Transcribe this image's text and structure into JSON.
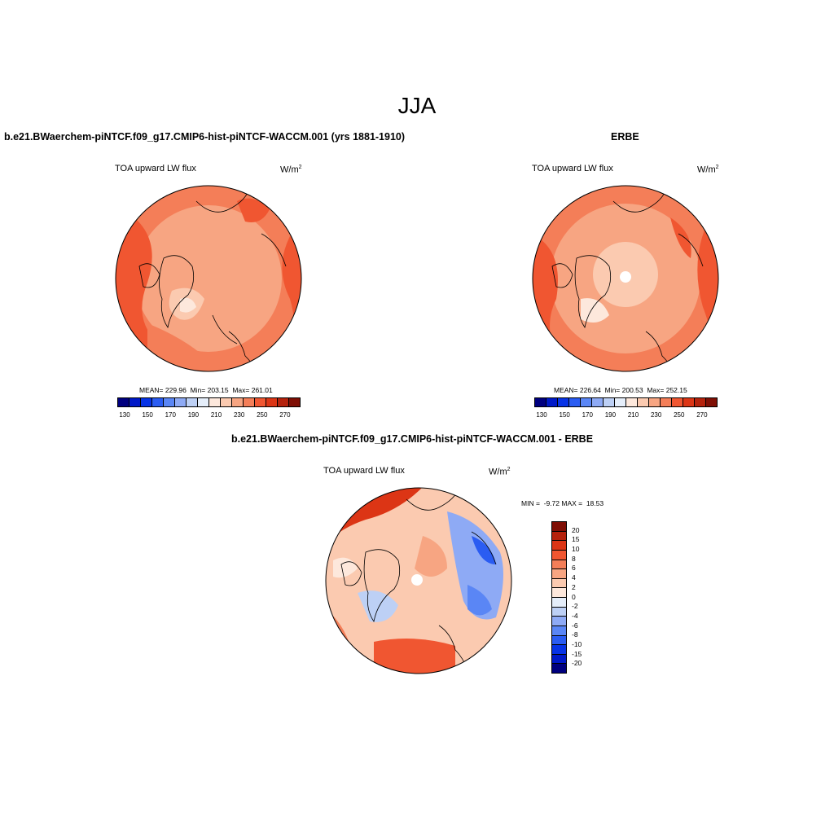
{
  "figure": {
    "title": "JJA"
  },
  "panels": [
    {
      "title": "b.e21.BWaerchem-piNTCF.f09_g17.CMIP6-hist-piNTCF-WACCM.001 (yrs 1881-1910)",
      "left_label": "TOA upward LW flux",
      "units": "W/m",
      "units_exp": "2",
      "stats": "MEAN= 229.96  Min= 203.15  Max= 261.01",
      "mean": 229.96,
      "min": 203.15,
      "max": 261.01
    },
    {
      "title": "ERBE",
      "left_label": "TOA upward LW flux",
      "units": "W/m",
      "units_exp": "2",
      "stats": "MEAN= 226.64  Min= 200.53  Max= 252.15",
      "mean": 226.64,
      "min": 200.53,
      "max": 252.15
    },
    {
      "title": "b.e21.BWaerchem-piNTCF.f09_g17.CMIP6-hist-piNTCF-WACCM.001 - ERBE",
      "left_label": "TOA upward LW flux",
      "units": "W/m",
      "units_exp": "2",
      "stats": "MIN =  -9.72 MAX =  18.53",
      "min": -9.72,
      "max": 18.53
    }
  ],
  "colorbar_abs": {
    "colors": [
      "#00007f",
      "#0019c8",
      "#0733e6",
      "#2a5cf2",
      "#5a86f5",
      "#8eaaf5",
      "#bdd0f5",
      "#e5eefa",
      "#fde8dc",
      "#fbcab0",
      "#f7a582",
      "#f47e58",
      "#f05631",
      "#dc3515",
      "#b5220c",
      "#7f0f05"
    ],
    "tick_labels": [
      "130",
      "150",
      "170",
      "190",
      "210",
      "230",
      "250",
      "270"
    ]
  },
  "colorbar_diff": {
    "colors": [
      "#00007f",
      "#0019c8",
      "#0733e6",
      "#2a5cf2",
      "#5a86f5",
      "#8eaaf5",
      "#bdd0f5",
      "#e5eefa",
      "#fde8dc",
      "#fbcab0",
      "#f7a582",
      "#f47e58",
      "#f05631",
      "#dc3515",
      "#b5220c",
      "#7f0f05"
    ],
    "tick_labels": [
      "20",
      "15",
      "10",
      "8",
      "6",
      "4",
      "2",
      "0",
      "-2",
      "-4",
      "-6",
      "-8",
      "-10",
      "-15",
      "-20"
    ]
  }
}
